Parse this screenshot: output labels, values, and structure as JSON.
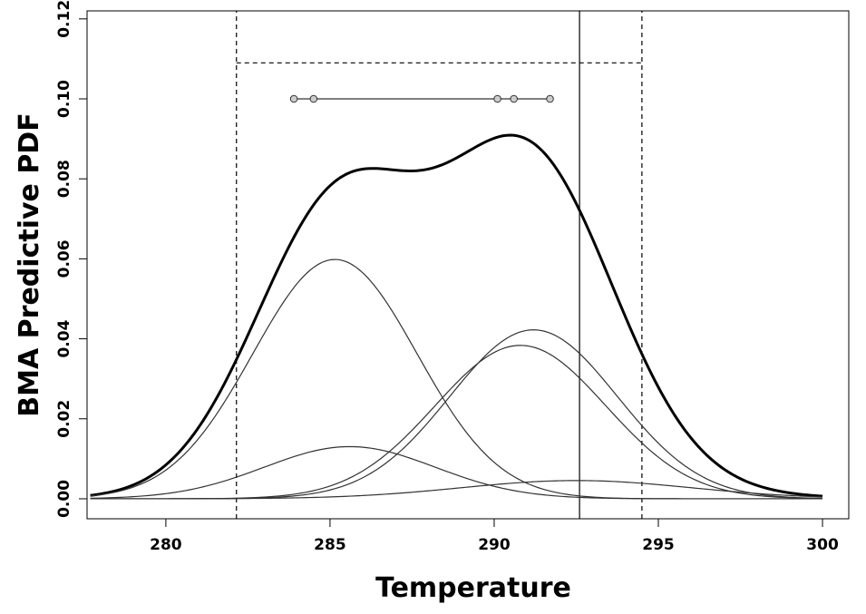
{
  "chart_data": {
    "type": "line",
    "title": "",
    "xlabel": "Temperature",
    "ylabel": "BMA Predictive PDF",
    "xlim": [
      277.6,
      300.8
    ],
    "ylim": [
      -0.005,
      0.122
    ],
    "xticks": [
      280,
      285,
      290,
      295,
      300
    ],
    "xtick_labels": [
      "280",
      "285",
      "290",
      "295",
      "300"
    ],
    "yticks": [
      0.0,
      0.02,
      0.04,
      0.06,
      0.08,
      0.1,
      0.12
    ],
    "ytick_labels": [
      "0.00",
      "0.02",
      "0.04",
      "0.06",
      "0.08",
      "0.10",
      "0.12"
    ],
    "grid": false,
    "legend": "none",
    "x_range": [
      277.7,
      300
    ],
    "series": [
      {
        "role": "bma-predictive-pdf",
        "bold": true,
        "components": [
          {
            "weight": 0.375,
            "mean": 285.15,
            "sd": 2.5
          },
          {
            "weight": 0.085,
            "mean": 285.6,
            "sd": 2.6
          },
          {
            "weight": 0.27,
            "mean": 291.2,
            "sd": 2.55
          },
          {
            "weight": 0.25,
            "mean": 290.8,
            "sd": 2.6
          },
          {
            "weight": 0.04,
            "mean": 292.5,
            "sd": 3.5
          }
        ]
      },
      {
        "role": "component",
        "weight": 0.375,
        "mean": 285.15,
        "sd": 2.5
      },
      {
        "role": "component",
        "weight": 0.085,
        "mean": 285.6,
        "sd": 2.6
      },
      {
        "role": "component",
        "weight": 0.27,
        "mean": 291.2,
        "sd": 2.55
      },
      {
        "role": "component",
        "weight": 0.25,
        "mean": 290.8,
        "sd": 2.6
      },
      {
        "role": "component",
        "weight": 0.04,
        "mean": 292.5,
        "sd": 3.5
      }
    ],
    "ensemble_members": {
      "y": 0.1,
      "x": [
        283.9,
        284.5,
        290.1,
        290.6,
        291.7
      ]
    },
    "interval_lines": {
      "x": [
        282.15,
        294.5
      ],
      "top_y": 0.109,
      "style": "dashed"
    },
    "observation_line": {
      "x": 292.6,
      "style": "solid"
    },
    "colors": {
      "line": "#000000",
      "component": "#333333",
      "marker_fill": "#cccccc"
    }
  }
}
